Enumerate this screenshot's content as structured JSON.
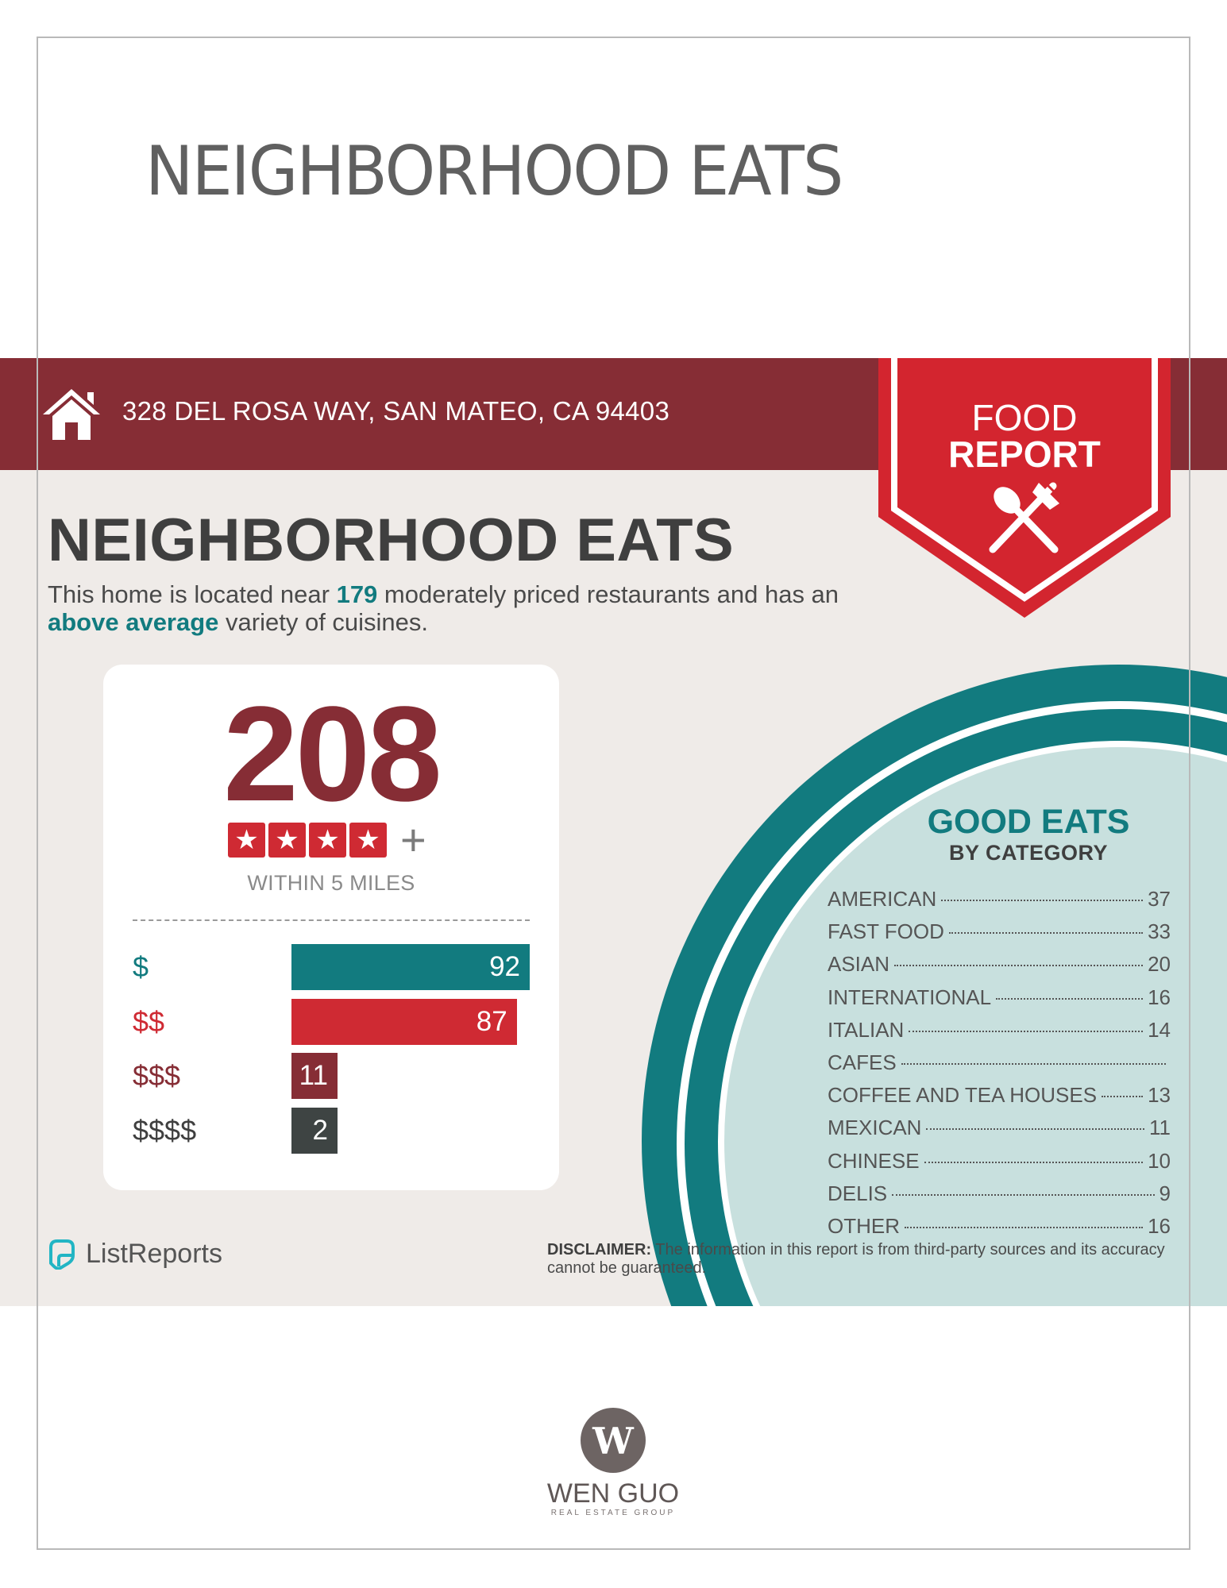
{
  "page_title": "NEIGHBORHOOD EATS",
  "banner": {
    "address": "328 DEL ROSA WAY, SAN MATEO, CA 94403",
    "ribbon_line1": "FOOD",
    "ribbon_line2": "REPORT",
    "colors": {
      "band": "#862d35",
      "ribbon": "#d3252f"
    }
  },
  "heading": "NEIGHBORHOOD EATS",
  "intro": {
    "part1": "This home is located near ",
    "count": "179",
    "part2": " moderately priced restaurants and has an ",
    "variety": "above average",
    "part3": " variety of cuisines."
  },
  "summary": {
    "total": "208",
    "stars": 4,
    "star_glyph": "★",
    "plus": "+",
    "radius": "WITHIN 5 MILES",
    "price_tiers": [
      {
        "label": "$",
        "value": "92",
        "color": "#127b7f",
        "label_color": "#127b7f"
      },
      {
        "label": "$$",
        "value": "87",
        "color": "#cf2a33",
        "label_color": "#cf2a33"
      },
      {
        "label": "$$$",
        "value": "11",
        "color": "#862d35",
        "label_color": "#862d35"
      },
      {
        "label": "$$$$",
        "value": "2",
        "color": "#3e4443",
        "label_color": "#3f3f3f"
      }
    ]
  },
  "categories": {
    "title": "GOOD EATS",
    "subtitle": "BY CATEGORY",
    "items": [
      {
        "name": "AMERICAN",
        "value": "37"
      },
      {
        "name": "FAST FOOD",
        "value": "33"
      },
      {
        "name": "ASIAN",
        "value": "20"
      },
      {
        "name": "INTERNATIONAL",
        "value": "16"
      },
      {
        "name": "ITALIAN",
        "value": "14"
      },
      {
        "name": "CAFES",
        "value": ""
      },
      {
        "name": "COFFEE AND TEA HOUSES",
        "value": "13"
      },
      {
        "name": "MEXICAN",
        "value": "11"
      },
      {
        "name": "CHINESE",
        "value": "10"
      },
      {
        "name": "DELIS",
        "value": "9"
      },
      {
        "name": "OTHER",
        "value": "16"
      }
    ]
  },
  "footer": {
    "brand": "ListReports",
    "disclaimer_label": "DISCLAIMER:",
    "disclaimer_text": " The information in this report is from third-party sources and its accuracy cannot be guaranteed."
  },
  "agent_logo": {
    "letter": "W",
    "name": "WEN GUO",
    "tagline": "REAL ESTATE GROUP"
  },
  "icons": [
    "home-icon",
    "utensils-icon",
    "star-icon",
    "listreports-logo-icon"
  ]
}
